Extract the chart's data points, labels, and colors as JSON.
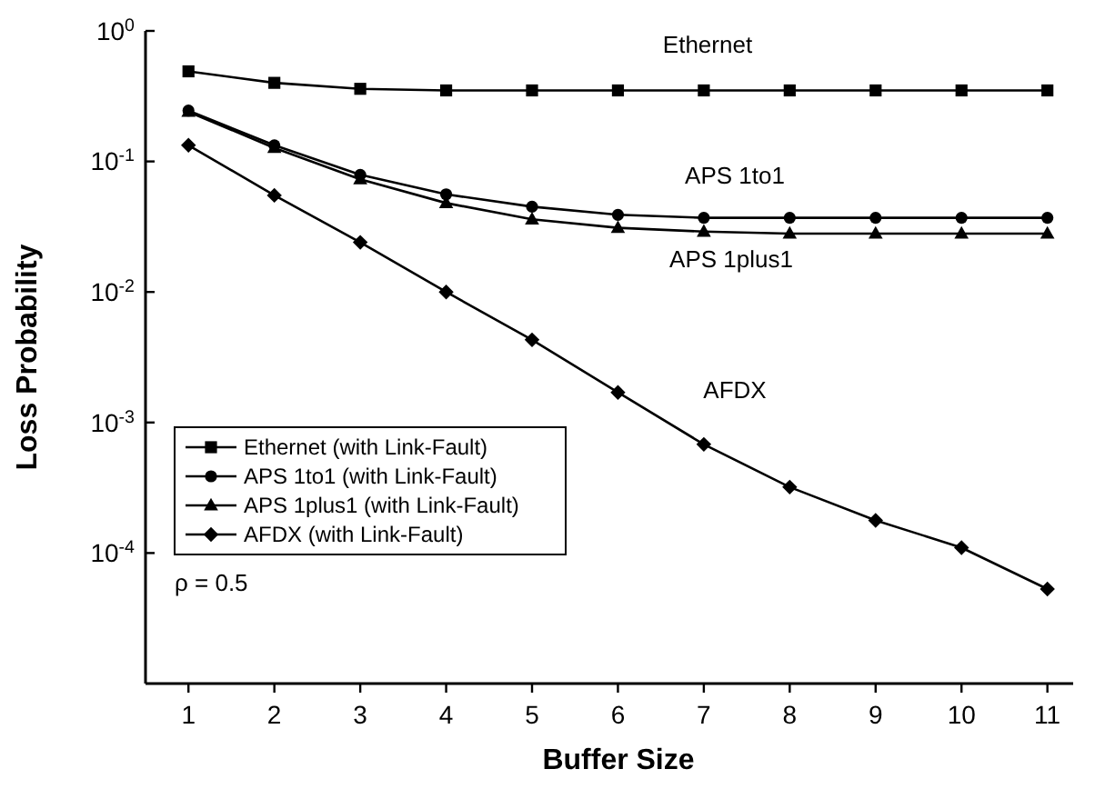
{
  "chart_data": {
    "type": "line",
    "xlabel": "Buffer Size",
    "ylabel": "Loss Probability",
    "x": [
      1,
      2,
      3,
      4,
      5,
      6,
      7,
      8,
      9,
      10,
      11
    ],
    "series": [
      {
        "name": "Ethernet (with Link-Fault)",
        "color": "#000000",
        "marker": "square",
        "values": [
          0.49,
          0.4,
          0.36,
          0.35,
          0.35,
          0.35,
          0.35,
          0.35,
          0.35,
          0.35,
          0.35
        ]
      },
      {
        "name": "APS 1to1 (with Link-Fault)",
        "color": "#000000",
        "marker": "circle",
        "values": [
          0.245,
          0.133,
          0.079,
          0.056,
          0.045,
          0.039,
          0.037,
          0.037,
          0.037,
          0.037,
          0.037
        ]
      },
      {
        "name": "APS 1plus1 (with Link-Fault)",
        "color": "#000000",
        "marker": "triangle",
        "values": [
          0.24,
          0.127,
          0.073,
          0.048,
          0.036,
          0.031,
          0.029,
          0.028,
          0.028,
          0.028,
          0.028
        ]
      },
      {
        "name": "AFDX (with Link-Fault)",
        "color": "#000000",
        "marker": "diamond",
        "values": [
          0.133,
          0.055,
          0.024,
          0.01,
          0.0043,
          0.0017,
          0.00068,
          0.00032,
          0.000178,
          0.00011,
          5.3e-05
        ]
      }
    ],
    "log": "y",
    "xlim": [
      0.5,
      11.3
    ],
    "ylim": [
      1e-05,
      1
    ],
    "xticks": [
      1,
      2,
      3,
      4,
      5,
      6,
      7,
      8,
      9,
      10,
      11
    ],
    "yticks": [
      {
        "value": 1,
        "label": "10$^{0}$"
      },
      {
        "value": 0.1,
        "label": "10$^{-1}$"
      },
      {
        "value": 0.01,
        "label": "10$^{-2}$"
      },
      {
        "value": 0.001,
        "label": "10$^{-3}$"
      },
      {
        "value": 0.0001,
        "label": "10$^{-4}$"
      }
    ],
    "annotations": [
      "Ethernet",
      "APS 1to1",
      "APS 1plus1",
      "AFDX",
      "ρ = 0.5"
    ],
    "legend": "left",
    "line_style": "solid",
    "grid": false
  }
}
